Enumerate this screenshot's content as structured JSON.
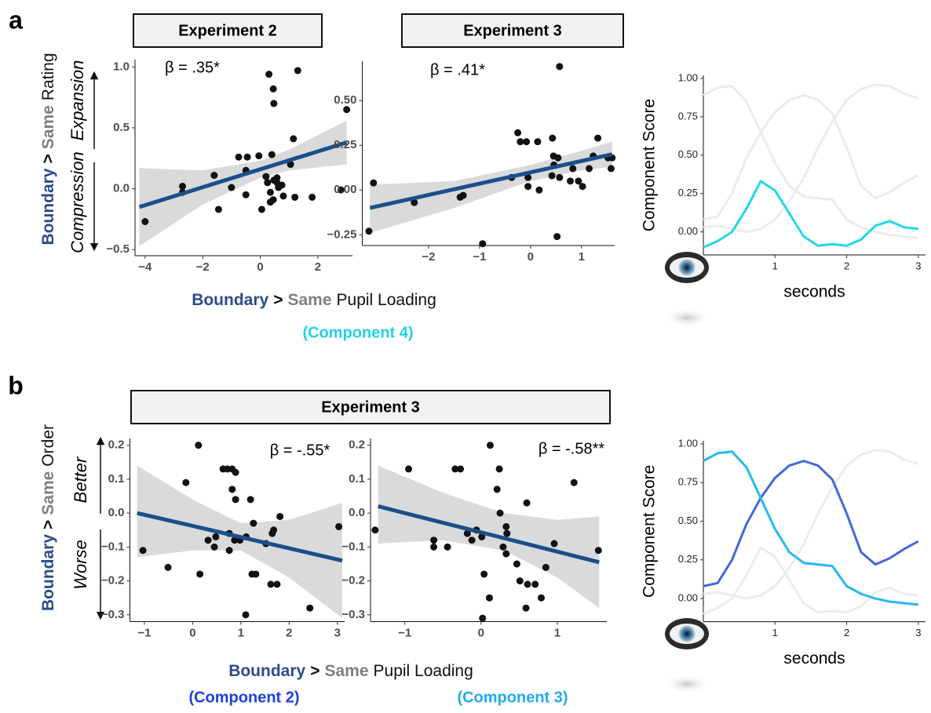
{
  "figure": {
    "panels": [
      {
        "letter": "a",
        "headers": [
          "Experiment 2",
          "Experiment 3"
        ],
        "y_label": {
          "parts": [
            {
              "text": "Boundary",
              "color": "#2e4a8a",
              "bold": true
            },
            {
              "text": ">",
              "color": "#111111",
              "bold": true
            },
            {
              "text": "Same",
              "color": "#808080",
              "bold": true
            },
            {
              "text": "Rating",
              "color": "#111111",
              "bold": false
            }
          ]
        },
        "regions": [
          "Expansion",
          "Compression"
        ],
        "x_label": {
          "parts": [
            {
              "text": "Boundary",
              "color": "#2e4a8a",
              "bold": true
            },
            {
              "text": ">",
              "color": "#111111",
              "bold": true
            },
            {
              "text": "Same",
              "color": "#808080",
              "bold": true
            },
            {
              "text": "Pupil Loading",
              "color": "#111111",
              "bold": false
            }
          ]
        },
        "components": [
          {
            "text": "(Component 4)",
            "color": "#1fd3e3"
          }
        ]
      },
      {
        "letter": "b",
        "headers": [
          "Experiment 3"
        ],
        "y_label": {
          "parts": [
            {
              "text": "Boundary",
              "color": "#2e4a8a",
              "bold": true
            },
            {
              "text": ">",
              "color": "#111111",
              "bold": true
            },
            {
              "text": "Same",
              "color": "#808080",
              "bold": true
            },
            {
              "text": "Order",
              "color": "#111111",
              "bold": false
            }
          ]
        },
        "regions": [
          "Better",
          "Worse"
        ],
        "x_label": {
          "parts": [
            {
              "text": "Boundary",
              "color": "#2e4a8a",
              "bold": true
            },
            {
              "text": ">",
              "color": "#111111",
              "bold": true
            },
            {
              "text": "Same",
              "color": "#808080",
              "bold": true
            },
            {
              "text": "Pupil Loading",
              "color": "#111111",
              "bold": false
            }
          ]
        },
        "components": [
          {
            "text": "(Component 2)",
            "color": "#1f3fe0"
          },
          {
            "text": "(Component 3)",
            "color": "#22aaee"
          }
        ]
      }
    ]
  },
  "chart_data": [
    {
      "type": "scatter",
      "annotation": "β = .35*",
      "color": "#111111",
      "x": [
        -4.0,
        -2.7,
        -2.7,
        -1.6,
        -1.45,
        -1.0,
        -0.75,
        -0.5,
        -0.45,
        -0.5,
        -0.05,
        0.05,
        0.2,
        0.25,
        0.3,
        0.45,
        0.47,
        0.4,
        0.35,
        0.35,
        0.45,
        0.47,
        0.58,
        0.65,
        0.58,
        0.63,
        0.75,
        0.8,
        1.05,
        1.2,
        1.15,
        1.3,
        1.8,
        2.8,
        3.0
      ],
      "values": [
        -0.27,
        0.02,
        -0.03,
        0.11,
        -0.17,
        0.01,
        0.26,
        0.15,
        0.26,
        -0.05,
        0.27,
        -0.17,
        0.1,
        0.05,
        0.94,
        0.82,
        0.7,
        0.28,
        -0.03,
        -0.11,
        -0.09,
        0.07,
        0.05,
        0.03,
        0.09,
        0.01,
        0.03,
        -0.06,
        0.2,
        -0.07,
        0.41,
        0.97,
        -0.07,
        -0.01,
        0.65
      ],
      "fit": {
        "x": [
          -4.2,
          3.0
        ],
        "values": [
          -0.15,
          0.38
        ],
        "color": "#1a4f8b"
      },
      "band": {
        "x": [
          -4.2,
          -2,
          0,
          1,
          3
        ],
        "upper": [
          0.17,
          0.15,
          0.23,
          0.32,
          0.56
        ],
        "lower": [
          -0.47,
          -0.13,
          0.09,
          0.15,
          0.2
        ],
        "color": "#d3d3d3"
      },
      "xlim": [
        -4.35,
        3.2
      ],
      "ylim": [
        -0.55,
        1.06
      ],
      "xticks": [
        {
          "value": -4,
          "label": "−4"
        },
        {
          "value": -2,
          "label": "−2"
        },
        0,
        2
      ],
      "yticks": [
        {
          "value": 1,
          "label": "1.0"
        },
        0.5,
        {
          "value": 0,
          "label": "0.0"
        },
        {
          "value": -0.5,
          "label": "−0.5"
        }
      ]
    },
    {
      "type": "scatter",
      "annotation": "β = .41*",
      "color": "#111111",
      "x": [
        -3.17,
        -3.08,
        -2.28,
        -1.38,
        -1.32,
        -0.94,
        -0.37,
        -0.25,
        -0.2,
        -0.08,
        0.14,
        -0.05,
        -0.05,
        0.17,
        0.42,
        0.43,
        0.45,
        0.54,
        0.46,
        0.57,
        0.57,
        0.52,
        0.78,
        0.83,
        0.94,
        1.02,
        1.15,
        1.23,
        1.32,
        1.52,
        1.58,
        1.6
      ],
      "values": [
        -0.23,
        0.04,
        -0.07,
        -0.04,
        -0.03,
        -0.3,
        0.07,
        0.32,
        0.27,
        0.27,
        0.27,
        0.07,
        0.02,
        0.0,
        0.08,
        0.29,
        0.19,
        0.18,
        0.14,
        0.07,
        0.69,
        -0.26,
        0.05,
        0.12,
        0.05,
        0.02,
        0.12,
        0.19,
        0.29,
        0.18,
        0.12,
        0.18
      ],
      "fit": {
        "x": [
          -3.15,
          1.6
        ],
        "values": [
          -0.1,
          0.2
        ],
        "color": "#1a4f8b"
      },
      "band": {
        "x": [
          -3.15,
          -1.5,
          0,
          1,
          1.6
        ],
        "upper": [
          0.03,
          0.05,
          0.14,
          0.22,
          0.27
        ],
        "lower": [
          -0.24,
          -0.1,
          0.05,
          0.11,
          0.13
        ],
        "color": "#d3d3d3"
      },
      "xlim": [
        -3.3,
        1.65
      ],
      "ylim": [
        -0.31,
        0.72
      ],
      "xticks": [
        {
          "value": -2,
          "label": "−2"
        },
        {
          "value": -1,
          "label": "−1"
        },
        0,
        1
      ],
      "yticks": [
        {
          "value": 0.5,
          "label": "0.50"
        },
        0.25,
        {
          "value": 0,
          "label": "0.00"
        },
        {
          "value": -0.25,
          "label": "−0.25"
        }
      ]
    },
    {
      "type": "line",
      "y_label": "Component Score",
      "x_label": "seconds",
      "x": [
        0,
        0.2,
        0.4,
        0.6,
        0.8,
        1.0,
        1.2,
        1.4,
        1.6,
        1.8,
        2.0,
        2.2,
        2.4,
        2.6,
        2.8,
        3.0
      ],
      "series": [
        {
          "color": "#ececec",
          "values": [
            0.03,
            0.04,
            0.02,
            0.0,
            0.02,
            0.08,
            0.2,
            0.35,
            0.55,
            0.72,
            0.86,
            0.93,
            0.96,
            0.95,
            0.9,
            0.87
          ]
        },
        {
          "color": "#ececec",
          "values": [
            0.08,
            0.1,
            0.25,
            0.48,
            0.65,
            0.78,
            0.86,
            0.89,
            0.86,
            0.77,
            0.55,
            0.3,
            0.22,
            0.26,
            0.32,
            0.37
          ]
        },
        {
          "color": "#ececec",
          "values": [
            0.89,
            0.94,
            0.95,
            0.85,
            0.65,
            0.45,
            0.3,
            0.23,
            0.22,
            0.21,
            0.08,
            0.03,
            0.0,
            -0.02,
            -0.03,
            -0.04
          ]
        },
        {
          "color": "#22d8e8",
          "values": [
            -0.1,
            -0.06,
            0.0,
            0.15,
            0.33,
            0.27,
            0.12,
            -0.03,
            -0.09,
            -0.08,
            -0.09,
            -0.05,
            0.04,
            0.07,
            0.03,
            0.02
          ]
        }
      ],
      "xlim": [
        0,
        3.1
      ],
      "ylim": [
        -0.15,
        1.02
      ],
      "xticks": [
        1,
        2,
        3
      ],
      "yticks": [
        {
          "value": 0,
          "label": "0.00"
        },
        0.25,
        {
          "value": 0.5,
          "label": "0.50"
        },
        0.75,
        {
          "value": 1,
          "label": "1.00"
        }
      ]
    },
    {
      "type": "scatter",
      "annotation": "β = -.55*",
      "color": "#111111",
      "x": [
        -1.03,
        -0.51,
        -0.14,
        0.12,
        0.15,
        0.32,
        0.48,
        0.45,
        0.63,
        0.72,
        0.82,
        0.89,
        0.82,
        0.89,
        0.76,
        0.76,
        0.87,
        0.98,
        1.11,
        1.2,
        1.1,
        1.23,
        1.31,
        1.26,
        1.52,
        1.65,
        1.68,
        1.62,
        1.75,
        1.81,
        2.43,
        3.03
      ],
      "values": [
        -0.11,
        -0.16,
        0.09,
        0.2,
        -0.18,
        -0.08,
        -0.07,
        -0.1,
        0.13,
        0.13,
        0.13,
        0.12,
        0.07,
        0.04,
        -0.06,
        -0.11,
        -0.08,
        -0.08,
        -0.07,
        0.04,
        -0.3,
        -0.18,
        -0.18,
        -0.03,
        -0.09,
        -0.06,
        -0.05,
        -0.21,
        -0.21,
        -0.01,
        -0.28,
        -0.04
      ],
      "fit": {
        "x": [
          -1.15,
          3.1
        ],
        "values": [
          0.0,
          -0.14
        ],
        "color": "#1a4f8b"
      },
      "band": {
        "x": [
          -1.15,
          0,
          1,
          2,
          3.1
        ],
        "upper": [
          0.14,
          0.04,
          -0.03,
          -0.02,
          0.03
        ],
        "lower": [
          -0.13,
          -0.11,
          -0.11,
          -0.19,
          -0.31
        ],
        "color": "#d3d3d3"
      },
      "xlim": [
        -1.3,
        3.15
      ],
      "ylim": [
        -0.32,
        0.22
      ],
      "xticks": [
        {
          "value": -1,
          "label": "−1"
        },
        0,
        1,
        2,
        3
      ],
      "yticks": [
        0.2,
        0.1,
        {
          "value": 0,
          "label": "0.0"
        },
        {
          "value": -0.1,
          "label": "−0.1"
        },
        {
          "value": -0.2,
          "label": "−0.2"
        },
        {
          "value": -0.3,
          "label": "−0.3"
        }
      ]
    },
    {
      "type": "scatter",
      "annotation": "β = -.58**",
      "color": "#111111",
      "x": [
        -1.39,
        -0.95,
        -0.62,
        -0.62,
        -0.44,
        -0.34,
        -0.27,
        -0.18,
        -0.12,
        -0.06,
        0.01,
        0.04,
        0.11,
        0.02,
        0.12,
        0.24,
        0.21,
        0.25,
        0.33,
        0.34,
        0.29,
        0.33,
        0.47,
        0.51,
        0.61,
        0.59,
        0.71,
        0.79,
        0.85,
        0.96,
        0.6,
        1.22,
        1.54
      ],
      "values": [
        -0.05,
        0.13,
        -0.08,
        -0.1,
        -0.1,
        0.13,
        0.13,
        -0.06,
        -0.08,
        -0.05,
        -0.07,
        -0.18,
        -0.25,
        -0.31,
        0.2,
        0.13,
        0.07,
        0.0,
        -0.04,
        -0.06,
        -0.1,
        -0.12,
        -0.15,
        -0.2,
        -0.21,
        -0.28,
        -0.21,
        -0.25,
        -0.16,
        -0.09,
        0.03,
        0.09,
        -0.11
      ],
      "fit": {
        "x": [
          -1.35,
          1.55
        ],
        "values": [
          0.02,
          -0.145
        ],
        "color": "#1a4f8b"
      },
      "band": {
        "x": [
          -1.35,
          -0.5,
          0.3,
          1,
          1.55
        ],
        "upper": [
          0.14,
          0.06,
          0.0,
          -0.02,
          -0.01
        ],
        "lower": [
          -0.09,
          -0.08,
          -0.11,
          -0.19,
          -0.28
        ],
        "color": "#d3d3d3"
      },
      "xlim": [
        -1.45,
        1.65
      ],
      "ylim": [
        -0.32,
        0.22
      ],
      "xticks": [
        {
          "value": -1,
          "label": "−1"
        },
        0,
        1
      ],
      "yticks": [
        0.2,
        0.1,
        {
          "value": 0,
          "label": "0.0"
        },
        {
          "value": -0.1,
          "label": "−0.1"
        },
        {
          "value": -0.2,
          "label": "−0.2"
        },
        {
          "value": -0.3,
          "label": "−0.3"
        }
      ]
    },
    {
      "type": "line",
      "y_label": "Component Score",
      "x_label": "seconds",
      "x": [
        0,
        0.2,
        0.4,
        0.6,
        0.8,
        1.0,
        1.2,
        1.4,
        1.6,
        1.8,
        2.0,
        2.2,
        2.4,
        2.6,
        2.8,
        3.0
      ],
      "series": [
        {
          "color": "#ececec",
          "values": [
            0.03,
            0.04,
            0.02,
            0.0,
            0.02,
            0.08,
            0.2,
            0.35,
            0.55,
            0.72,
            0.86,
            0.93,
            0.96,
            0.95,
            0.9,
            0.87
          ]
        },
        {
          "color": "#ececec",
          "values": [
            -0.1,
            -0.06,
            0.0,
            0.15,
            0.33,
            0.27,
            0.12,
            -0.03,
            -0.09,
            -0.08,
            -0.09,
            -0.05,
            0.04,
            0.07,
            0.03,
            0.02
          ]
        },
        {
          "color": "#4466dd",
          "values": [
            0.08,
            0.1,
            0.25,
            0.48,
            0.65,
            0.78,
            0.86,
            0.89,
            0.86,
            0.77,
            0.55,
            0.3,
            0.22,
            0.26,
            0.32,
            0.37
          ]
        },
        {
          "color": "#24baf0",
          "values": [
            0.89,
            0.94,
            0.95,
            0.85,
            0.65,
            0.45,
            0.3,
            0.23,
            0.22,
            0.21,
            0.08,
            0.03,
            0.0,
            -0.02,
            -0.03,
            -0.04
          ]
        }
      ],
      "xlim": [
        0,
        3.1
      ],
      "ylim": [
        -0.15,
        1.02
      ],
      "xticks": [
        1,
        2,
        3
      ],
      "yticks": [
        {
          "value": 0,
          "label": "0.00"
        },
        0.25,
        {
          "value": 0.5,
          "label": "0.50"
        },
        0.75,
        {
          "value": 1,
          "label": "1.00"
        }
      ]
    }
  ]
}
